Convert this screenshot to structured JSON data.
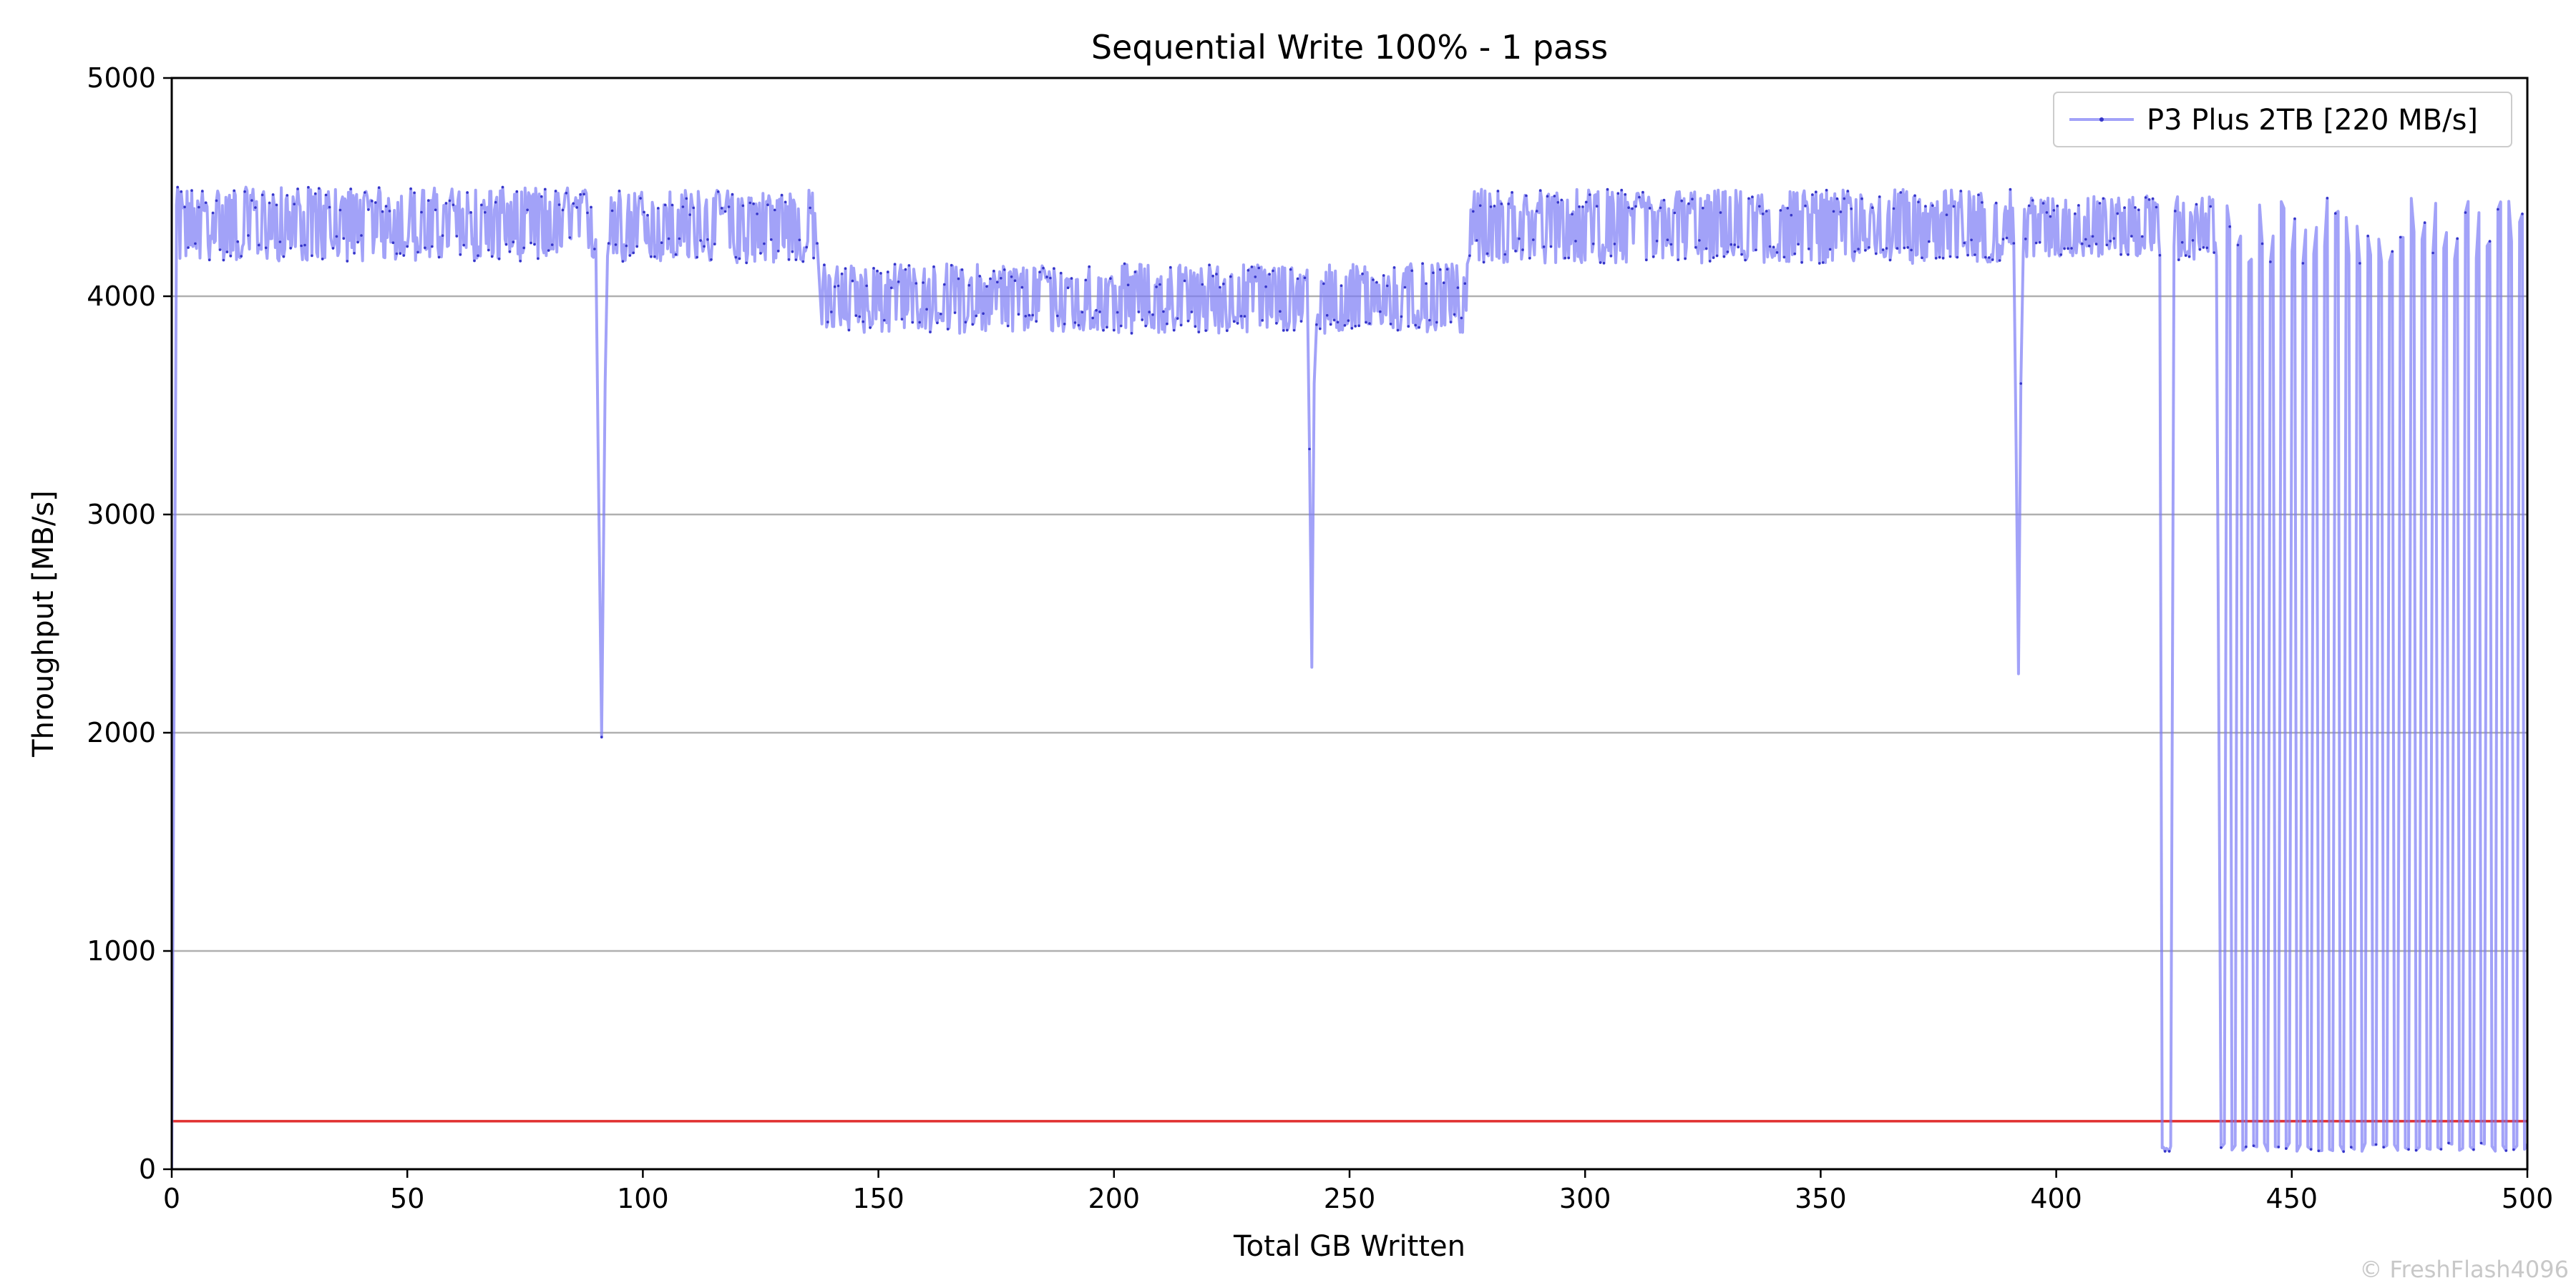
{
  "chart_data": {
    "type": "line",
    "title": "Sequential Write 100% - 1 pass",
    "xlabel": "Total GB Written",
    "ylabel": "Throughput [MB/s]",
    "xlim": [
      0,
      500
    ],
    "ylim": [
      0,
      5000
    ],
    "xticks": [
      "0",
      "50",
      "100",
      "150",
      "200",
      "250",
      "300",
      "350",
      "400",
      "450",
      "500"
    ],
    "yticks": [
      "0",
      "1000",
      "2000",
      "3000",
      "4000",
      "5000"
    ],
    "grid": "horizontal",
    "legend_position": "top-right",
    "series": [
      {
        "name": "P3 Plus 2TB [220 MB/s]",
        "color": "#7b7bf5",
        "marker_color": "#3535c8",
        "profile": [
          {
            "x0": 0,
            "x1": 1,
            "from": 0,
            "to": 4300
          },
          {
            "x0": 1,
            "x1": 90,
            "level": 4330,
            "noise": 170
          },
          {
            "x0": 90.5,
            "x1": 92,
            "dip": 1980
          },
          {
            "x0": 92.5,
            "x1": 137,
            "level": 4320,
            "noise": 170
          },
          {
            "x0": 138,
            "x1": 241,
            "level": 3990,
            "noise": 160
          },
          {
            "x0": 241.5,
            "x1": 242.5,
            "dip": 2300
          },
          {
            "x0": 243,
            "x1": 275,
            "level": 3990,
            "noise": 160
          },
          {
            "x0": 275.5,
            "x1": 391,
            "level": 4320,
            "noise": 170
          },
          {
            "x0": 391.5,
            "x1": 392.5,
            "dip": 2270
          },
          {
            "x0": 393,
            "x1": 422,
            "level": 4320,
            "noise": 140
          },
          {
            "x0": 422.5,
            "x1": 424.5,
            "floor": 80
          },
          {
            "x0": 425,
            "x1": 434,
            "level": 4310,
            "noise": 150
          },
          {
            "x0": 435,
            "x1": 500,
            "cycle_period": 2.3,
            "floor": 80,
            "peak": 4450
          }
        ]
      }
    ],
    "reference_line": {
      "y": 220,
      "color": "#e03030"
    }
  },
  "watermark": "© FreshFlash4096"
}
